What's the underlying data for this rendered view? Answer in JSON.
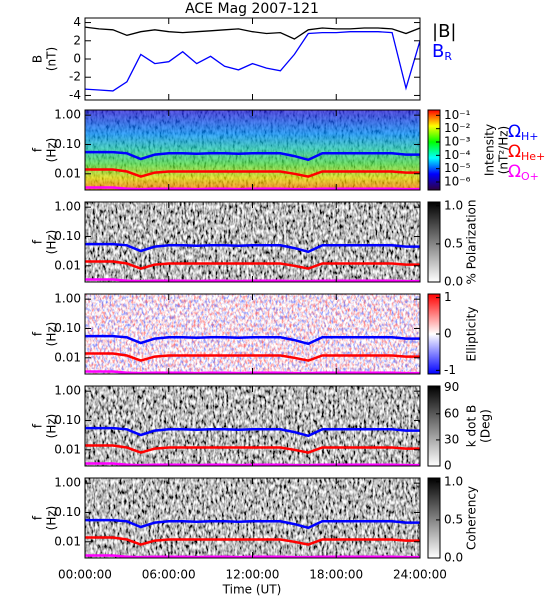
{
  "title": "ACE Mag 2007-121",
  "x_axis": {
    "label": "Time (UT)",
    "xlim": [
      0,
      24
    ],
    "xticks": [
      {
        "value": 0,
        "label": "00:00:00"
      },
      {
        "value": 6,
        "label": "06:00:00"
      },
      {
        "value": 12,
        "label": "12:00:00"
      },
      {
        "value": 18,
        "label": "18:00:00"
      },
      {
        "value": 24,
        "label": "24:00:00"
      }
    ]
  },
  "chart_data": [
    {
      "type": "line",
      "ylabel": [
        "B",
        "(nT)"
      ],
      "ylim": [
        -4.5,
        4.5
      ],
      "yticks": [
        -4,
        -2,
        0,
        2,
        4
      ],
      "x": [
        0,
        1,
        2,
        3,
        4,
        5,
        6,
        7,
        8,
        9,
        10,
        11,
        12,
        13,
        14,
        15,
        16,
        17,
        18,
        19,
        20,
        21,
        22,
        23,
        24
      ],
      "series": [
        {
          "name": "|B|",
          "color": "#000000",
          "values": [
            3.5,
            3.3,
            3.2,
            2.6,
            3.0,
            3.2,
            3.0,
            2.9,
            3.0,
            3.1,
            3.2,
            3.3,
            3.0,
            2.8,
            2.9,
            2.2,
            3.2,
            3.4,
            3.3,
            3.3,
            3.4,
            3.4,
            3.3,
            2.8,
            3.4
          ]
        },
        {
          "name": "B",
          "sub": "R",
          "color": "#0000ff",
          "values": [
            -3.3,
            -3.4,
            -3.5,
            -2.5,
            0.5,
            -0.5,
            -0.3,
            0.8,
            -0.5,
            0.3,
            -0.8,
            -1.2,
            -0.5,
            -1.0,
            -1.3,
            0.5,
            2.8,
            2.9,
            2.9,
            3.0,
            3.0,
            3.0,
            2.9,
            -3.2,
            2.0
          ]
        }
      ]
    },
    {
      "type": "spectrogram",
      "ylabel": [
        "f",
        "(Hz)"
      ],
      "ylog": true,
      "ylim": [
        0.0028,
        1.5
      ],
      "yticks": [
        {
          "value": 0.01,
          "label": "0.01"
        },
        {
          "value": 0.1,
          "label": "0.10"
        },
        {
          "value": 1,
          "label": "1.00"
        }
      ],
      "colormap": "rainbow",
      "colorbar": {
        "label": [
          "Intensity",
          "(nT²/Hz)"
        ],
        "lim": [
          -6.6,
          -0.6
        ],
        "ticks": [
          {
            "value": -1,
            "label": "10⁻¹"
          },
          {
            "value": -2,
            "label": "10⁻²"
          },
          {
            "value": -3,
            "label": "10⁻³"
          },
          {
            "value": -4,
            "label": "10⁻⁴"
          },
          {
            "value": -5,
            "label": "10⁻⁵"
          },
          {
            "value": -6,
            "label": "10⁻⁶"
          }
        ]
      },
      "x": [
        0,
        1,
        2,
        3,
        4,
        5,
        6,
        7,
        8,
        9,
        10,
        11,
        12,
        13,
        14,
        15,
        16,
        17,
        18,
        19,
        20,
        21,
        22,
        23,
        24
      ],
      "series": [
        {
          "name": "Ω",
          "sub": "H+",
          "color": "#0000ff",
          "values": [
            0.055,
            0.055,
            0.055,
            0.05,
            0.032,
            0.045,
            0.05,
            0.05,
            0.048,
            0.05,
            0.05,
            0.048,
            0.05,
            0.05,
            0.05,
            0.04,
            0.03,
            0.05,
            0.05,
            0.05,
            0.05,
            0.05,
            0.05,
            0.045,
            0.045
          ]
        },
        {
          "name": "Ω",
          "sub": "He+",
          "color": "#ff0000",
          "values": [
            0.014,
            0.014,
            0.014,
            0.012,
            0.008,
            0.011,
            0.012,
            0.012,
            0.012,
            0.012,
            0.012,
            0.012,
            0.012,
            0.012,
            0.012,
            0.01,
            0.008,
            0.012,
            0.012,
            0.012,
            0.012,
            0.012,
            0.012,
            0.011,
            0.011
          ]
        },
        {
          "name": "Ω",
          "sub": "O+",
          "color": "#ff00ff",
          "values": [
            0.0034,
            0.0034,
            0.0034,
            0.0031,
            0.003,
            0.0031,
            0.0031,
            0.0031,
            0.003,
            0.0031,
            0.0031,
            0.003,
            0.0031,
            0.0031,
            0.0031,
            0.003,
            0.003,
            0.0031,
            0.0031,
            0.0031,
            0.0031,
            0.0031,
            0.0031,
            0.003,
            0.003
          ]
        }
      ]
    },
    {
      "type": "spectrogram",
      "ylabel": [
        "f",
        "(Hz)"
      ],
      "ylog": true,
      "ylim": [
        0.0028,
        1.5
      ],
      "yticks": [
        {
          "value": 0.01,
          "label": "0.01"
        },
        {
          "value": 0.1,
          "label": "0.10"
        },
        {
          "value": 1,
          "label": "1.00"
        }
      ],
      "colormap": "gray",
      "colorbar": {
        "label": [
          "% Polarization"
        ],
        "lim": [
          0,
          1.05
        ],
        "ticks": [
          {
            "value": 0,
            "label": "0.0"
          },
          0.5,
          {
            "value": 1,
            "label": "1.0"
          }
        ]
      },
      "x": [
        0,
        1,
        2,
        3,
        4,
        5,
        6,
        7,
        8,
        9,
        10,
        11,
        12,
        13,
        14,
        15,
        16,
        17,
        18,
        19,
        20,
        21,
        22,
        23,
        24
      ],
      "series": [
        {
          "color": "#0000ff",
          "values": [
            0.055,
            0.055,
            0.055,
            0.05,
            0.032,
            0.045,
            0.05,
            0.05,
            0.048,
            0.05,
            0.05,
            0.048,
            0.05,
            0.05,
            0.05,
            0.04,
            0.03,
            0.05,
            0.05,
            0.05,
            0.05,
            0.05,
            0.05,
            0.045,
            0.045
          ]
        },
        {
          "color": "#ff0000",
          "values": [
            0.014,
            0.014,
            0.014,
            0.012,
            0.008,
            0.011,
            0.012,
            0.012,
            0.012,
            0.012,
            0.012,
            0.012,
            0.012,
            0.012,
            0.012,
            0.01,
            0.008,
            0.012,
            0.012,
            0.012,
            0.012,
            0.012,
            0.012,
            0.011,
            0.011
          ]
        },
        {
          "color": "#ff00ff",
          "values": [
            0.0034,
            0.0034,
            0.0034,
            0.0031,
            0.003,
            0.0031,
            0.0031,
            0.0031,
            0.003,
            0.0031,
            0.0031,
            0.003,
            0.0031,
            0.0031,
            0.0031,
            0.003,
            0.003,
            0.0031,
            0.0031,
            0.0031,
            0.0031,
            0.0031,
            0.0031,
            0.003,
            0.003
          ]
        }
      ]
    },
    {
      "type": "spectrogram",
      "ylabel": [
        "f",
        "(Hz)"
      ],
      "ylog": true,
      "ylim": [
        0.0028,
        1.5
      ],
      "yticks": [
        {
          "value": 0.01,
          "label": "0.01"
        },
        {
          "value": 0.1,
          "label": "0.10"
        },
        {
          "value": 1,
          "label": "1.00"
        }
      ],
      "colormap": "bwr",
      "colorbar": {
        "label": [
          "Ellipticity"
        ],
        "lim": [
          -1.1,
          1.1
        ],
        "ticks": [
          -1,
          0,
          1
        ]
      },
      "x": [
        0,
        1,
        2,
        3,
        4,
        5,
        6,
        7,
        8,
        9,
        10,
        11,
        12,
        13,
        14,
        15,
        16,
        17,
        18,
        19,
        20,
        21,
        22,
        23,
        24
      ],
      "series": [
        {
          "color": "#0000ff",
          "values": [
            0.055,
            0.055,
            0.055,
            0.05,
            0.032,
            0.045,
            0.05,
            0.05,
            0.048,
            0.05,
            0.05,
            0.048,
            0.05,
            0.05,
            0.05,
            0.04,
            0.03,
            0.05,
            0.05,
            0.05,
            0.05,
            0.05,
            0.05,
            0.045,
            0.045
          ]
        },
        {
          "color": "#ff0000",
          "values": [
            0.014,
            0.014,
            0.014,
            0.012,
            0.008,
            0.011,
            0.012,
            0.012,
            0.012,
            0.012,
            0.012,
            0.012,
            0.012,
            0.012,
            0.012,
            0.01,
            0.008,
            0.012,
            0.012,
            0.012,
            0.012,
            0.012,
            0.012,
            0.011,
            0.011
          ]
        },
        {
          "color": "#ff00ff",
          "values": [
            0.0034,
            0.0034,
            0.0034,
            0.0031,
            0.003,
            0.0031,
            0.0031,
            0.0031,
            0.003,
            0.0031,
            0.0031,
            0.003,
            0.0031,
            0.0031,
            0.0031,
            0.003,
            0.003,
            0.0031,
            0.0031,
            0.0031,
            0.0031,
            0.0031,
            0.0031,
            0.003,
            0.003
          ]
        }
      ]
    },
    {
      "type": "spectrogram",
      "ylabel": [
        "f",
        "(Hz)"
      ],
      "ylog": true,
      "ylim": [
        0.0028,
        1.5
      ],
      "yticks": [
        {
          "value": 0.01,
          "label": "0.01"
        },
        {
          "value": 0.1,
          "label": "0.10"
        },
        {
          "value": 1,
          "label": "1.00"
        }
      ],
      "colormap": "gray",
      "colorbar": {
        "label": [
          "k dot B",
          "(Deg)"
        ],
        "lim": [
          0,
          92
        ],
        "ticks": [
          0,
          30,
          60,
          90
        ]
      },
      "x": [
        0,
        1,
        2,
        3,
        4,
        5,
        6,
        7,
        8,
        9,
        10,
        11,
        12,
        13,
        14,
        15,
        16,
        17,
        18,
        19,
        20,
        21,
        22,
        23,
        24
      ],
      "series": [
        {
          "color": "#0000ff",
          "values": [
            0.055,
            0.055,
            0.055,
            0.05,
            0.032,
            0.045,
            0.05,
            0.05,
            0.048,
            0.05,
            0.05,
            0.048,
            0.05,
            0.05,
            0.05,
            0.04,
            0.03,
            0.05,
            0.05,
            0.05,
            0.05,
            0.05,
            0.05,
            0.045,
            0.045
          ]
        },
        {
          "color": "#ff0000",
          "values": [
            0.014,
            0.014,
            0.014,
            0.012,
            0.008,
            0.011,
            0.012,
            0.012,
            0.012,
            0.012,
            0.012,
            0.012,
            0.012,
            0.012,
            0.012,
            0.01,
            0.008,
            0.012,
            0.012,
            0.012,
            0.012,
            0.012,
            0.012,
            0.011,
            0.011
          ]
        },
        {
          "color": "#ff00ff",
          "values": [
            0.0034,
            0.0034,
            0.0034,
            0.0031,
            0.003,
            0.0031,
            0.0031,
            0.0031,
            0.003,
            0.0031,
            0.0031,
            0.003,
            0.0031,
            0.0031,
            0.0031,
            0.003,
            0.003,
            0.0031,
            0.0031,
            0.0031,
            0.0031,
            0.0031,
            0.0031,
            0.003,
            0.003
          ]
        }
      ]
    },
    {
      "type": "spectrogram",
      "ylabel": [
        "f",
        "(Hz)"
      ],
      "ylog": true,
      "ylim": [
        0.0028,
        1.5
      ],
      "yticks": [
        {
          "value": 0.01,
          "label": "0.01"
        },
        {
          "value": 0.1,
          "label": "0.10"
        },
        {
          "value": 1,
          "label": "1.00"
        }
      ],
      "colormap": "gray",
      "colorbar": {
        "label": [
          "Coherency"
        ],
        "lim": [
          0,
          1.05
        ],
        "ticks": [
          {
            "value": 0,
            "label": "0.0"
          },
          0.5,
          {
            "value": 1,
            "label": "1.0"
          }
        ]
      },
      "x": [
        0,
        1,
        2,
        3,
        4,
        5,
        6,
        7,
        8,
        9,
        10,
        11,
        12,
        13,
        14,
        15,
        16,
        17,
        18,
        19,
        20,
        21,
        22,
        23,
        24
      ],
      "series": [
        {
          "color": "#0000ff",
          "values": [
            0.055,
            0.055,
            0.055,
            0.05,
            0.032,
            0.045,
            0.05,
            0.05,
            0.048,
            0.05,
            0.05,
            0.048,
            0.05,
            0.05,
            0.05,
            0.04,
            0.03,
            0.05,
            0.05,
            0.05,
            0.05,
            0.05,
            0.05,
            0.045,
            0.045
          ]
        },
        {
          "color": "#ff0000",
          "values": [
            0.014,
            0.014,
            0.014,
            0.012,
            0.008,
            0.011,
            0.012,
            0.012,
            0.012,
            0.012,
            0.012,
            0.012,
            0.012,
            0.012,
            0.012,
            0.01,
            0.008,
            0.012,
            0.012,
            0.012,
            0.012,
            0.012,
            0.012,
            0.011,
            0.011
          ]
        },
        {
          "color": "#ff00ff",
          "values": [
            0.0034,
            0.0034,
            0.0034,
            0.0031,
            0.003,
            0.0031,
            0.0031,
            0.0031,
            0.003,
            0.0031,
            0.0031,
            0.003,
            0.0031,
            0.0031,
            0.0031,
            0.003,
            0.003,
            0.0031,
            0.0031,
            0.0031,
            0.0031,
            0.0031,
            0.0031,
            0.003,
            0.003
          ]
        }
      ]
    }
  ]
}
